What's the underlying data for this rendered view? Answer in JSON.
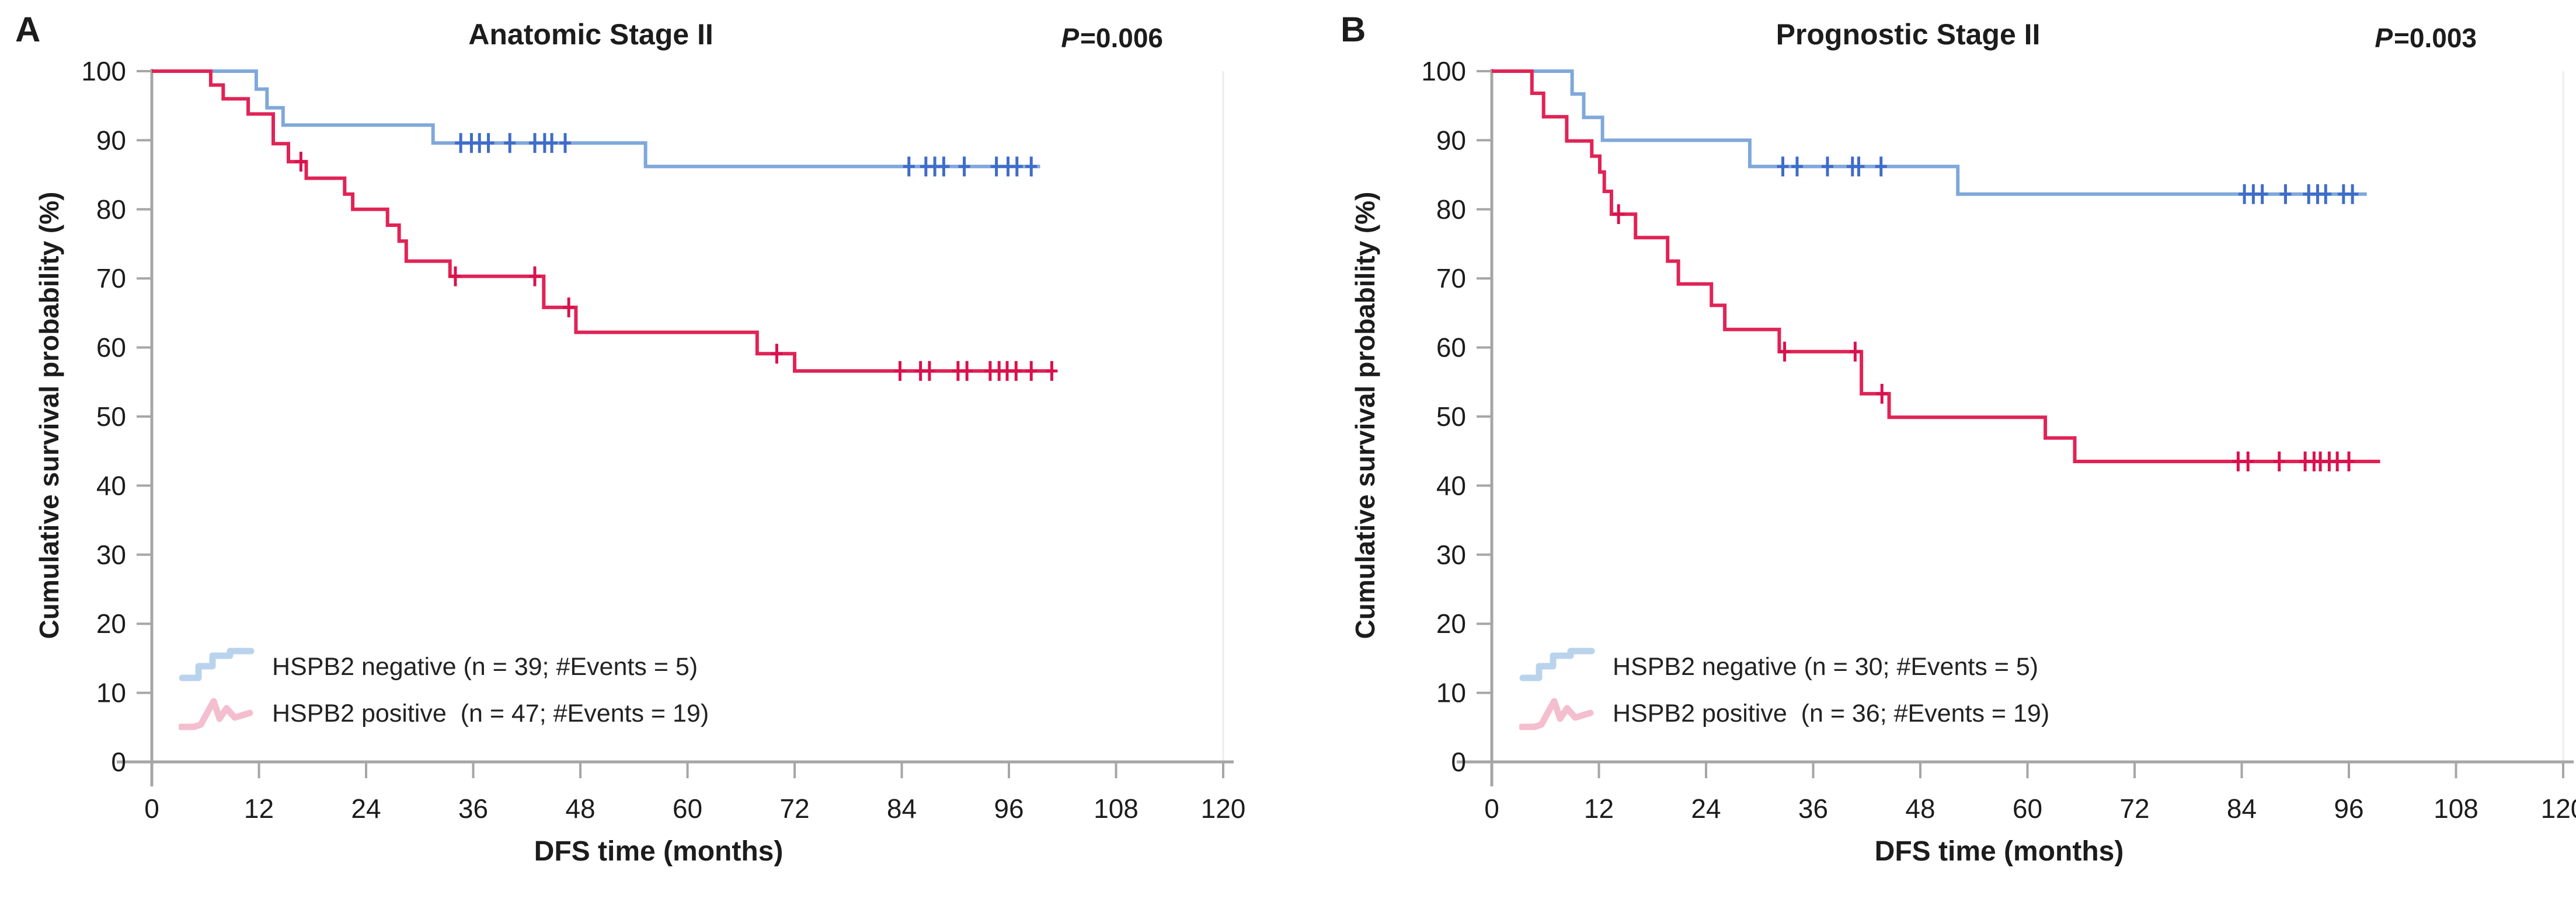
{
  "colors": {
    "negative_line": "#7FA8DA",
    "negative_censor": "#3F6CC8",
    "positive_line": "#E02355",
    "positive_censor": "#D9114E",
    "legend_negative_swatch": "#AECBEA",
    "legend_positive_swatch": "#F2B3C7",
    "axis": "#A6A6A6",
    "plot_right_border": "#ECECEC",
    "text": "#1C1C1C"
  },
  "chart_data": [
    {
      "type": "line",
      "subtype": "kaplan-meier-step",
      "panel_label": "A",
      "title": "Anatomic Stage II",
      "p_symbol": "P",
      "p_rest": "=0.006",
      "p_value": 0.006,
      "xlabel": "DFS time (months)",
      "ylabel": "Cumulative survival probability (%)",
      "xlim": [
        0,
        120
      ],
      "ylim": [
        0,
        100
      ],
      "x_ticks": [
        0,
        12,
        24,
        36,
        48,
        60,
        72,
        84,
        96,
        108,
        120
      ],
      "y_ticks": [
        0,
        10,
        20,
        30,
        40,
        50,
        60,
        70,
        80,
        90,
        100
      ],
      "grid": false,
      "legend_position": "lower-left",
      "series": [
        {
          "name": "HSPB2 negative",
          "legend_label": "HSPB2 negative (n = 39; #Events = 5)",
          "n": 39,
          "events": 5,
          "color_key": "negative",
          "steps": [
            [
              0,
              100
            ],
            [
              11.7,
              97.4
            ],
            [
              12.9,
              94.7
            ],
            [
              14.7,
              92.2
            ],
            [
              31.5,
              89.6
            ],
            [
              55.3,
              86.2
            ]
          ],
          "end_time": 99.5,
          "censor_marks": [
            [
              34.6,
              89.6
            ],
            [
              35.8,
              89.6
            ],
            [
              36.7,
              89.6
            ],
            [
              37.7,
              89.6
            ],
            [
              40.1,
              89.6
            ],
            [
              42.9,
              89.6
            ],
            [
              44.0,
              89.6
            ],
            [
              44.8,
              89.6
            ],
            [
              46.3,
              89.6
            ],
            [
              84.8,
              86.2
            ],
            [
              86.7,
              86.2
            ],
            [
              87.7,
              86.2
            ],
            [
              88.7,
              86.2
            ],
            [
              91.0,
              86.2
            ],
            [
              94.6,
              86.2
            ],
            [
              95.9,
              86.2
            ],
            [
              96.9,
              86.2
            ],
            [
              98.5,
              86.2
            ]
          ]
        },
        {
          "name": "HSPB2 positive",
          "legend_label": "HSPB2 positive  (n = 47; #Events = 19)",
          "n": 47,
          "events": 19,
          "color_key": "positive",
          "steps": [
            [
              0,
              100
            ],
            [
              6.6,
              98.0
            ],
            [
              8.0,
              96.0
            ],
            [
              10.8,
              93.8
            ],
            [
              13.6,
              89.5
            ],
            [
              15.3,
              86.9
            ],
            [
              17.3,
              84.5
            ],
            [
              21.6,
              82.2
            ],
            [
              22.5,
              80.0
            ],
            [
              26.4,
              77.7
            ],
            [
              27.7,
              75.4
            ],
            [
              28.5,
              72.5
            ],
            [
              33.4,
              70.3
            ],
            [
              43.9,
              65.8
            ],
            [
              47.5,
              62.2
            ],
            [
              67.8,
              59.1
            ],
            [
              72.0,
              56.6
            ]
          ],
          "end_time": 101.0,
          "censor_marks": [
            [
              16.7,
              86.9
            ],
            [
              34.0,
              70.3
            ],
            [
              42.9,
              70.3
            ],
            [
              46.7,
              65.8
            ],
            [
              70.0,
              59.1
            ],
            [
              83.8,
              56.6
            ],
            [
              86.1,
              56.6
            ],
            [
              87.1,
              56.6
            ],
            [
              90.3,
              56.6
            ],
            [
              91.3,
              56.6
            ],
            [
              93.9,
              56.6
            ],
            [
              94.9,
              56.6
            ],
            [
              95.8,
              56.6
            ],
            [
              96.8,
              56.6
            ],
            [
              98.5,
              56.6
            ],
            [
              100.8,
              56.6
            ]
          ]
        }
      ]
    },
    {
      "type": "line",
      "subtype": "kaplan-meier-step",
      "panel_label": "B",
      "title": "Prognostic Stage II",
      "p_symbol": "P",
      "p_rest": "=0.003",
      "p_value": 0.003,
      "xlabel": "DFS time (months)",
      "ylabel": "Cumulative survival probability (%)",
      "xlim": [
        0,
        120
      ],
      "ylim": [
        0,
        100
      ],
      "x_ticks": [
        0,
        12,
        24,
        36,
        48,
        60,
        72,
        84,
        96,
        108,
        120
      ],
      "y_ticks": [
        0,
        10,
        20,
        30,
        40,
        50,
        60,
        70,
        80,
        90,
        100
      ],
      "grid": false,
      "legend_position": "lower-left",
      "series": [
        {
          "name": "HSPB2 negative",
          "legend_label": "HSPB2 negative (n = 30; #Events = 5)",
          "n": 30,
          "events": 5,
          "color_key": "negative",
          "steps": [
            [
              0,
              100
            ],
            [
              9.0,
              96.7
            ],
            [
              10.3,
              93.3
            ],
            [
              12.4,
              90.0
            ],
            [
              28.9,
              86.2
            ],
            [
              52.2,
              82.2
            ]
          ],
          "end_time": 98.0,
          "censor_marks": [
            [
              32.6,
              86.2
            ],
            [
              34.2,
              86.2
            ],
            [
              37.6,
              86.2
            ],
            [
              40.4,
              86.2
            ],
            [
              41.1,
              86.2
            ],
            [
              43.6,
              86.2
            ],
            [
              84.3,
              82.2
            ],
            [
              85.3,
              82.2
            ],
            [
              86.3,
              82.2
            ],
            [
              88.9,
              82.2
            ],
            [
              91.5,
              82.2
            ],
            [
              92.5,
              82.2
            ],
            [
              93.4,
              82.2
            ],
            [
              95.4,
              82.2
            ],
            [
              96.4,
              82.2
            ]
          ]
        },
        {
          "name": "HSPB2 positive",
          "legend_label": "HSPB2 positive  (n = 36; #Events = 19)",
          "n": 36,
          "events": 19,
          "color_key": "positive",
          "steps": [
            [
              0,
              100
            ],
            [
              4.5,
              96.8
            ],
            [
              5.8,
              93.4
            ],
            [
              8.4,
              89.9
            ],
            [
              11.2,
              87.7
            ],
            [
              12.1,
              85.4
            ],
            [
              12.6,
              82.6
            ],
            [
              13.4,
              79.3
            ],
            [
              16.1,
              75.9
            ],
            [
              19.7,
              72.5
            ],
            [
              20.9,
              69.2
            ],
            [
              24.6,
              66.1
            ],
            [
              26.1,
              62.6
            ],
            [
              32.2,
              59.4
            ],
            [
              41.4,
              53.3
            ],
            [
              44.5,
              49.9
            ],
            [
              62.0,
              46.9
            ],
            [
              65.3,
              43.5
            ]
          ],
          "end_time": 99.5,
          "censor_marks": [
            [
              14.2,
              79.3
            ],
            [
              32.8,
              59.4
            ],
            [
              40.7,
              59.4
            ],
            [
              43.7,
              53.3
            ],
            [
              83.6,
              43.5
            ],
            [
              84.7,
              43.5
            ],
            [
              88.2,
              43.5
            ],
            [
              91.1,
              43.5
            ],
            [
              92.1,
              43.5
            ],
            [
              92.8,
              43.5
            ],
            [
              93.8,
              43.5
            ],
            [
              94.7,
              43.5
            ],
            [
              96.0,
              43.5
            ]
          ]
        }
      ]
    }
  ]
}
